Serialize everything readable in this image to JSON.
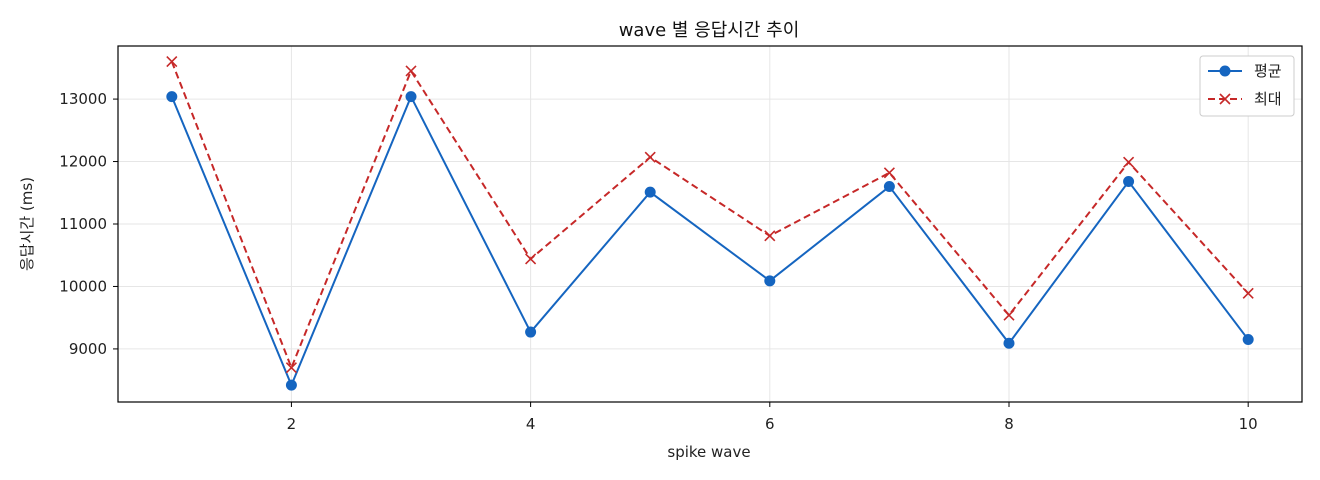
{
  "chart_data": {
    "type": "line",
    "title": "wave 별 응답시간 추이",
    "xlabel": "spike wave",
    "ylabel": "응답시간 (ms)",
    "x": [
      1,
      2,
      3,
      4,
      5,
      6,
      7,
      8,
      9,
      10
    ],
    "xticks": [
      2,
      4,
      6,
      8,
      10
    ],
    "yticks": [
      9000,
      10000,
      11000,
      12000,
      13000
    ],
    "xlim": [
      0.55,
      10.45
    ],
    "ylim": [
      8150,
      13850
    ],
    "grid": true,
    "legend_position": "top-right",
    "series": [
      {
        "name": "평균",
        "color": "#1565c0",
        "line_style": "solid",
        "marker": "circle",
        "values": [
          13040,
          8420,
          13040,
          9270,
          11510,
          10090,
          11600,
          9090,
          11680,
          9150
        ]
      },
      {
        "name": "최대",
        "color": "#c62828",
        "line_style": "dashed",
        "marker": "x",
        "values": [
          13600,
          8700,
          13450,
          10440,
          12070,
          10810,
          11820,
          9540,
          11990,
          9890
        ]
      }
    ]
  }
}
